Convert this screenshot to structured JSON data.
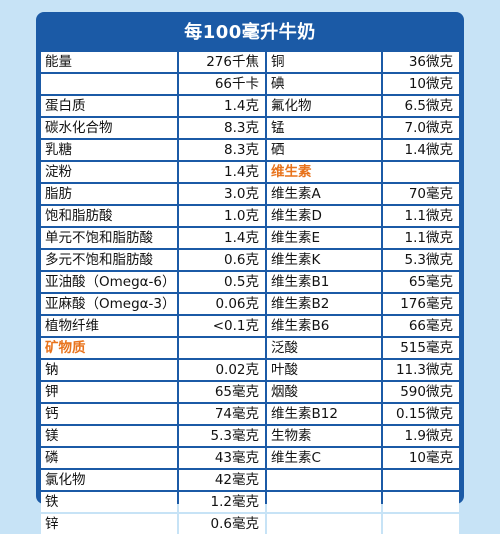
{
  "title": "每100毫升牛奶",
  "left": [
    {
      "name": "能量",
      "value": "276千焦"
    },
    {
      "name": "",
      "value": "66千卡"
    },
    {
      "name": "蛋白质",
      "value": "1.4克"
    },
    {
      "name": "碳水化合物",
      "value": "8.3克"
    },
    {
      "name": "乳糖",
      "value": "8.3克"
    },
    {
      "name": "淀粉",
      "value": "1.4克"
    },
    {
      "name": "脂肪",
      "value": "3.0克"
    },
    {
      "name": "饱和脂肪酸",
      "value": "1.0克"
    },
    {
      "name": "单元不饱和脂肪酸",
      "value": "1.4克"
    },
    {
      "name": "多元不饱和脂肪酸",
      "value": "0.6克"
    },
    {
      "name": "亚油酸（Omegα-6）",
      "value": "0.5克"
    },
    {
      "name": "亚麻酸（Omegα-3）",
      "value": "0.06克"
    },
    {
      "name": "植物纤维",
      "value": "<0.1克"
    },
    {
      "name": "矿物质",
      "value": "",
      "section": true
    },
    {
      "name": "钠",
      "value": "0.02克"
    },
    {
      "name": "钾",
      "value": "65毫克"
    },
    {
      "name": "钙",
      "value": "74毫克"
    },
    {
      "name": "镁",
      "value": "5.3毫克"
    },
    {
      "name": "磷",
      "value": "43毫克"
    },
    {
      "name": "氯化物",
      "value": "42毫克"
    },
    {
      "name": "铁",
      "value": "1.2毫克"
    },
    {
      "name": "锌",
      "value": "0.6毫克"
    }
  ],
  "right": [
    {
      "name": "铜",
      "value": "36微克"
    },
    {
      "name": "碘",
      "value": "10微克"
    },
    {
      "name": "氟化物",
      "value": "6.5微克"
    },
    {
      "name": "锰",
      "value": "7.0微克"
    },
    {
      "name": "硒",
      "value": "1.4微克"
    },
    {
      "name": "维生素",
      "value": "",
      "section": true
    },
    {
      "name": "维生素A",
      "value": "70毫克"
    },
    {
      "name": "维生素D",
      "value": "1.1微克"
    },
    {
      "name": "维生素E",
      "value": "1.1微克"
    },
    {
      "name": "维生素K",
      "value": "5.3微克"
    },
    {
      "name": "维生素B1",
      "value": "65毫克"
    },
    {
      "name": "维生素B2",
      "value": "176毫克"
    },
    {
      "name": "维生素B6",
      "value": "66毫克"
    },
    {
      "name": "泛酸",
      "value": "515毫克"
    },
    {
      "name": "叶酸",
      "value": "11.3微克"
    },
    {
      "name": "烟酸",
      "value": "590微克"
    },
    {
      "name": "维生素B12",
      "value": "0.15微克"
    },
    {
      "name": "生物素",
      "value": "1.9微克"
    },
    {
      "name": "维生素C",
      "value": "10毫克"
    },
    {
      "name": "",
      "value": ""
    },
    {
      "name": "",
      "value": ""
    },
    {
      "name": "",
      "value": ""
    }
  ],
  "colors": {
    "frame": "#1b5aa6",
    "section": "#e8731c",
    "background": "#c7e3f6"
  }
}
